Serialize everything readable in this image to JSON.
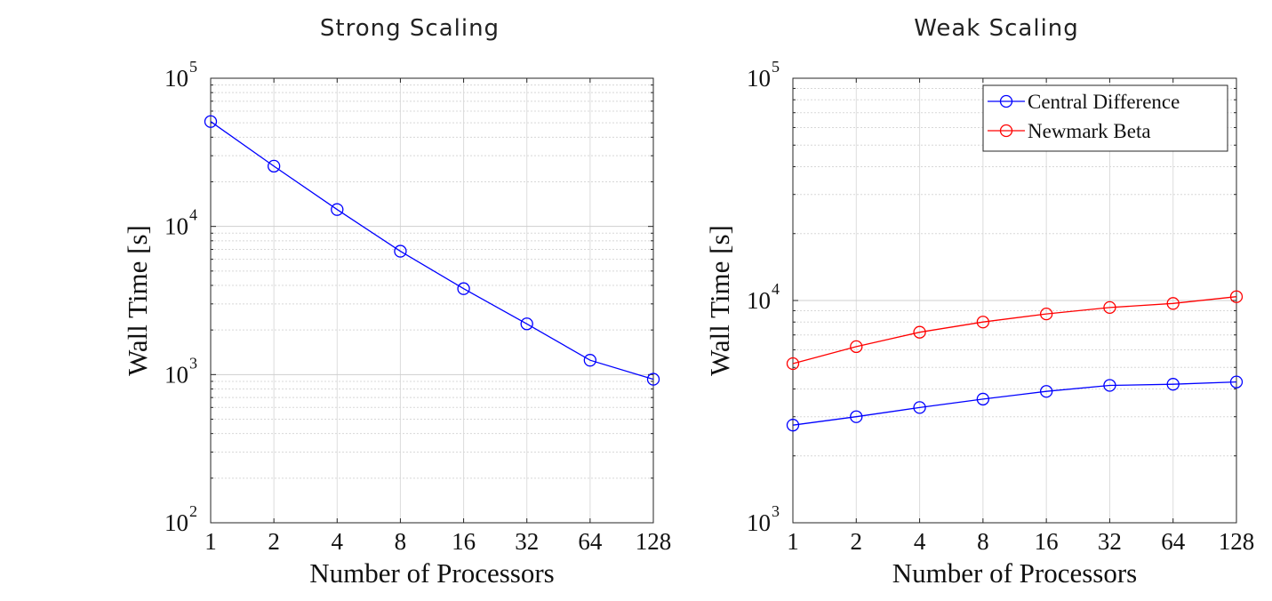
{
  "chart_data": [
    {
      "type": "line",
      "title": "Strong Scaling",
      "xlabel": "Number of Processors",
      "ylabel": "Wall Time [s]",
      "x_scale": "log2",
      "y_scale": "log10",
      "x": [
        1,
        2,
        4,
        8,
        16,
        32,
        64,
        128
      ],
      "xticks": [
        "1",
        "2",
        "4",
        "8",
        "16",
        "32",
        "64",
        "128"
      ],
      "ylim": [
        100,
        100000
      ],
      "yticks": [
        {
          "base": "10",
          "exp": "2",
          "value": 100
        },
        {
          "base": "10",
          "exp": "3",
          "value": 1000
        },
        {
          "base": "10",
          "exp": "4",
          "value": 10000
        },
        {
          "base": "10",
          "exp": "5",
          "value": 100000
        }
      ],
      "grid": true,
      "series": [
        {
          "color": "#0000ff",
          "marker": "circle",
          "values": [
            51000,
            25500,
            13000,
            6800,
            3800,
            2200,
            1250,
            930
          ]
        }
      ]
    },
    {
      "type": "line",
      "title": "Weak Scaling",
      "xlabel": "Number of Processors",
      "ylabel": "Wall Time [s]",
      "x_scale": "log2",
      "y_scale": "log10",
      "x": [
        1,
        2,
        4,
        8,
        16,
        32,
        64,
        128
      ],
      "xticks": [
        "1",
        "2",
        "4",
        "8",
        "16",
        "32",
        "64",
        "128"
      ],
      "ylim": [
        1000,
        100000
      ],
      "yticks": [
        {
          "base": "10",
          "exp": "3",
          "value": 1000
        },
        {
          "base": "10",
          "exp": "4",
          "value": 10000
        },
        {
          "base": "10",
          "exp": "5",
          "value": 100000
        }
      ],
      "grid": true,
      "legend": "top-right",
      "series": [
        {
          "name": "Central Difference",
          "color": "#0000ff",
          "marker": "circle",
          "values": [
            2750,
            3000,
            3300,
            3600,
            3900,
            4150,
            4200,
            4300
          ]
        },
        {
          "name": "Newmark Beta",
          "color": "#ff0000",
          "marker": "circle",
          "values": [
            5200,
            6200,
            7200,
            8000,
            8700,
            9300,
            9700,
            10400
          ]
        }
      ]
    }
  ]
}
